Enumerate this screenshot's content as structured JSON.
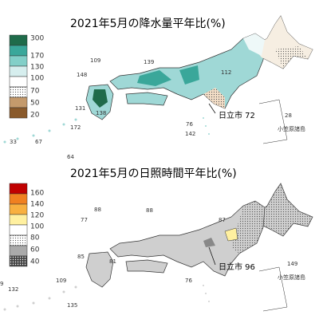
{
  "maps": [
    {
      "title": "2021年5月の降水量平年比(%)",
      "legend": [
        "300",
        "170",
        "130",
        "100",
        "70",
        "50",
        "20"
      ],
      "labels": [
        "109",
        "139",
        "148",
        "112",
        "131",
        "138",
        "76",
        "172",
        "142",
        "67",
        "33",
        "64",
        "28"
      ],
      "callout": "日立市 72",
      "islands": "小笠原諸島"
    },
    {
      "title": "2021年5月の日照時間平年比(%)",
      "legend": [
        "160",
        "140",
        "120",
        "100",
        "80",
        "60",
        "40"
      ],
      "labels": [
        "88",
        "88",
        "77",
        "87",
        "85",
        "81",
        "109",
        "132",
        "76",
        "135",
        "149",
        "9"
      ],
      "callout": "日立市 96",
      "islands": "小笠原諸島"
    }
  ]
}
